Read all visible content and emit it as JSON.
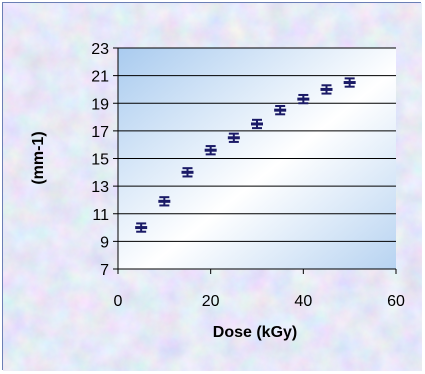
{
  "chart_data": {
    "type": "scatter",
    "title": "",
    "xlabel": "Dose (kGy)",
    "ylabel": "(mm-1)",
    "xlim": [
      0,
      60
    ],
    "ylim": [
      7,
      23
    ],
    "x_ticks": [
      0,
      20,
      40,
      60
    ],
    "y_ticks": [
      7,
      9,
      11,
      13,
      15,
      17,
      19,
      21,
      23
    ],
    "grid": "horizontal",
    "legend": "none",
    "series": [
      {
        "marker": "error-bar",
        "x": [
          5,
          10,
          15,
          20,
          25,
          30,
          35,
          40,
          45,
          50
        ],
        "y": [
          10.0,
          11.9,
          14.0,
          15.6,
          16.5,
          17.5,
          18.5,
          19.3,
          20.0,
          20.5
        ],
        "error": [
          0.3,
          0.3,
          0.3,
          0.3,
          0.3,
          0.3,
          0.3,
          0.3,
          0.3,
          0.3
        ]
      }
    ],
    "colors": {
      "marker": "#1a1a66",
      "plot_bg_light": "#ffffff",
      "plot_bg_dark": "#a9cbef",
      "grid": "#000000",
      "frame_border": "#6b7fb5"
    }
  }
}
